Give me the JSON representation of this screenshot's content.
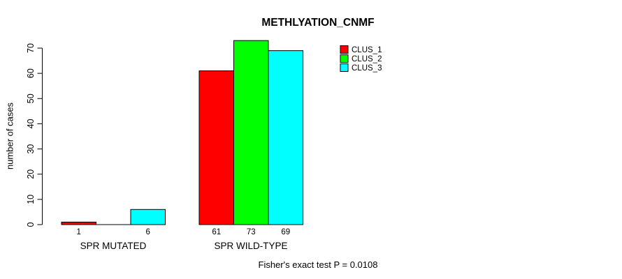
{
  "title": "METHLYATION_CNMF",
  "y_axis_label": "number of cases",
  "footnote": "Fisher's exact test P = 0.0108",
  "legend": {
    "position": "top-right",
    "items": [
      {
        "label": "CLUS_1",
        "color": "#ff0000"
      },
      {
        "label": "CLUS_2",
        "color": "#00ff00"
      },
      {
        "label": "CLUS_3",
        "color": "#00ffff"
      }
    ]
  },
  "chart_data": {
    "type": "bar",
    "title": "METHLYATION_CNMF",
    "xlabel": "",
    "ylabel": "number of cases",
    "categories": [
      "SPR MUTATED",
      "SPR WILD-TYPE"
    ],
    "series": [
      {
        "name": "CLUS_1",
        "color": "#ff0000",
        "values": [
          1,
          61
        ]
      },
      {
        "name": "CLUS_2",
        "color": "#00ff00",
        "values": [
          0,
          73
        ]
      },
      {
        "name": "CLUS_3",
        "color": "#00ffff",
        "values": [
          6,
          69
        ]
      }
    ],
    "bar_value_labels": [
      [
        "1",
        "",
        "6"
      ],
      [
        "61",
        "73",
        "69"
      ]
    ],
    "yticks": [
      0,
      10,
      20,
      30,
      40,
      50,
      60,
      70
    ],
    "ylim": [
      0,
      70
    ],
    "grid": false,
    "legend_position": "top-right",
    "annotation": "Fisher's exact test P = 0.0108"
  }
}
